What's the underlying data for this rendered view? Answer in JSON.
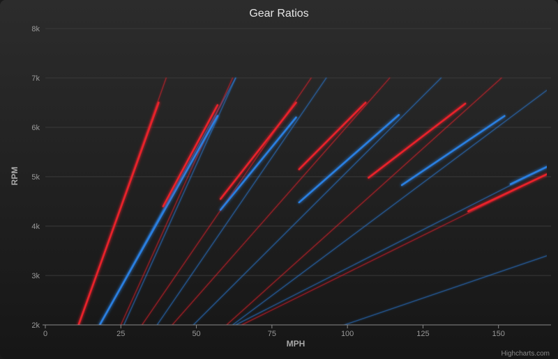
{
  "chart_data": {
    "type": "line",
    "title": "Gear Ratios",
    "xlabel": "MPH",
    "ylabel": "RPM",
    "xlim": [
      0,
      166
    ],
    "ylim": [
      2000,
      8000
    ],
    "x_ticks": [
      0,
      25,
      50,
      75,
      100,
      125,
      150
    ],
    "x_tick_labels": [
      "0",
      "25",
      "50",
      "75",
      "100",
      "125",
      "150"
    ],
    "y_ticks": [
      2000,
      3000,
      4000,
      5000,
      6000,
      7000,
      8000
    ],
    "y_tick_labels": [
      "2k",
      "3k",
      "4k",
      "5k",
      "6k",
      "7k",
      "8k"
    ],
    "grid": true,
    "legend": "none",
    "colors": {
      "red": "#e8202a",
      "blue": "#2a7fe0"
    },
    "series": [
      {
        "color": "red",
        "style": "thin",
        "points": [
          [
            11,
            2000
          ],
          [
            40,
            7000
          ]
        ]
      },
      {
        "color": "red",
        "style": "thick",
        "points": [
          [
            11,
            2000
          ],
          [
            37.5,
            6500
          ]
        ]
      },
      {
        "color": "blue",
        "style": "thin",
        "points": [
          [
            18,
            2000
          ],
          [
            63,
            7000
          ]
        ]
      },
      {
        "color": "blue",
        "style": "thick",
        "points": [
          [
            18,
            2000
          ],
          [
            57,
            6230
          ]
        ]
      },
      {
        "color": "red",
        "style": "thin",
        "points": [
          [
            25,
            2000
          ],
          [
            62,
            7000
          ]
        ]
      },
      {
        "color": "red",
        "style": "thick",
        "points": [
          [
            39,
            4400
          ],
          [
            57,
            6450
          ]
        ]
      },
      {
        "color": "blue",
        "style": "thin",
        "points": [
          [
            26,
            2000
          ],
          [
            63,
            7000
          ]
        ]
      },
      {
        "color": "red",
        "style": "thin",
        "points": [
          [
            32,
            2000
          ],
          [
            88,
            7000
          ]
        ]
      },
      {
        "color": "red",
        "style": "thick",
        "points": [
          [
            58,
            4550
          ],
          [
            83,
            6500
          ]
        ]
      },
      {
        "color": "blue",
        "style": "thin",
        "points": [
          [
            37,
            2000
          ],
          [
            93,
            7000
          ]
        ]
      },
      {
        "color": "blue",
        "style": "thick",
        "points": [
          [
            58,
            4330
          ],
          [
            83,
            6200
          ]
        ]
      },
      {
        "color": "red",
        "style": "thin",
        "points": [
          [
            42,
            2000
          ],
          [
            114,
            7000
          ]
        ]
      },
      {
        "color": "red",
        "style": "thick",
        "points": [
          [
            84,
            5150
          ],
          [
            106,
            6500
          ]
        ]
      },
      {
        "color": "blue",
        "style": "thin",
        "points": [
          [
            49,
            2000
          ],
          [
            131,
            7000
          ]
        ]
      },
      {
        "color": "blue",
        "style": "thick",
        "points": [
          [
            84,
            4480
          ],
          [
            117,
            6250
          ]
        ]
      },
      {
        "color": "red",
        "style": "thin",
        "points": [
          [
            60,
            2000
          ],
          [
            151,
            7000
          ]
        ]
      },
      {
        "color": "red",
        "style": "thick",
        "points": [
          [
            107,
            4980
          ],
          [
            139,
            6480
          ]
        ]
      },
      {
        "color": "blue",
        "style": "thin",
        "points": [
          [
            62,
            2000
          ],
          [
            166,
            6750
          ]
        ]
      },
      {
        "color": "blue",
        "style": "thick",
        "points": [
          [
            118,
            4830
          ],
          [
            152,
            6230
          ]
        ]
      },
      {
        "color": "red",
        "style": "thin",
        "points": [
          [
            65,
            2000
          ],
          [
            166,
            5050
          ]
        ]
      },
      {
        "color": "red",
        "style": "thick",
        "points": [
          [
            140,
            4300
          ],
          [
            166,
            5050
          ]
        ]
      },
      {
        "color": "blue",
        "style": "thin",
        "points": [
          [
            63,
            2000
          ],
          [
            166,
            5200
          ]
        ]
      },
      {
        "color": "blue",
        "style": "thick",
        "points": [
          [
            154,
            4850
          ],
          [
            166,
            5200
          ]
        ]
      },
      {
        "color": "blue",
        "style": "thin",
        "points": [
          [
            99,
            2000
          ],
          [
            166,
            3400
          ]
        ]
      }
    ]
  },
  "credits": "Highcharts.com"
}
